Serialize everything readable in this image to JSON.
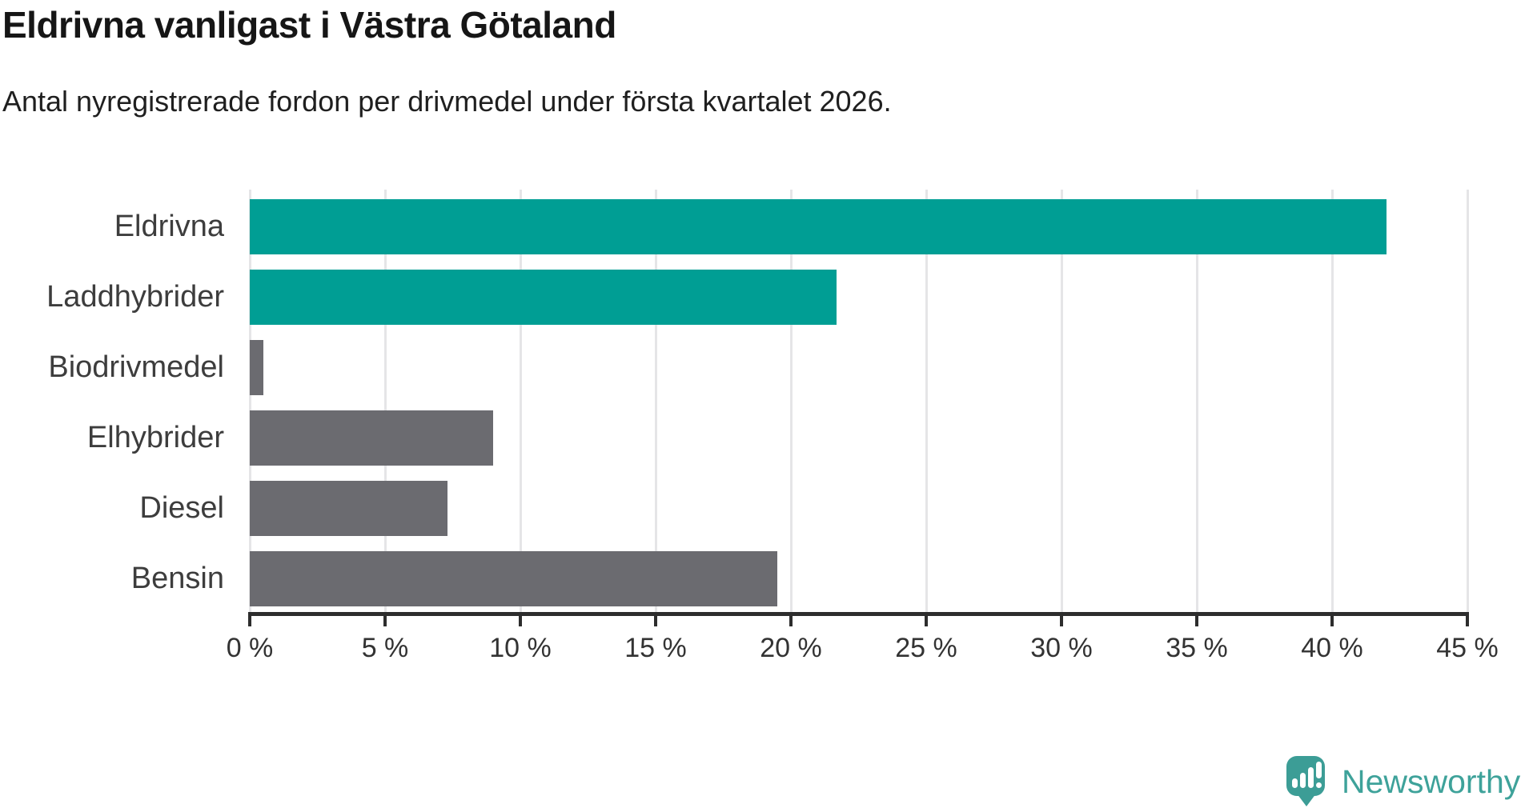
{
  "title": "Eldrivna vanligast i Västra Götaland",
  "subtitle": "Antal nyregistrerade fordon per drivmedel under första kvartalet 2026.",
  "chart_data": {
    "type": "bar",
    "orientation": "horizontal",
    "title": "Eldrivna vanligast i Västra Götaland",
    "subtitle": "Antal nyregistrerade fordon per drivmedel under första kvartalet 2026.",
    "categories": [
      "Eldrivna",
      "Laddhybrider",
      "Biodrivmedel",
      "Elhybrider",
      "Diesel",
      "Bensin"
    ],
    "values": [
      42.0,
      21.7,
      0.5,
      9.0,
      7.3,
      19.5
    ],
    "unit": "%",
    "bar_colors": [
      "#009e94",
      "#009e94",
      "#6b6b70",
      "#6b6b70",
      "#6b6b70",
      "#6b6b70"
    ],
    "xlim": [
      0,
      45
    ],
    "x_ticks": [
      0,
      5,
      10,
      15,
      20,
      25,
      30,
      35,
      40,
      45
    ],
    "x_tick_labels": [
      "0 %",
      "5 %",
      "10 %",
      "15 %",
      "20 %",
      "25 %",
      "30 %",
      "35 %",
      "40 %",
      "45 %"
    ],
    "grid": true,
    "legend": false,
    "ylabel": "",
    "xlabel": ""
  },
  "colors": {
    "highlight_bar": "#009e94",
    "default_bar": "#6b6b70",
    "axis": "#2d2d2d",
    "gridline": "#e5e5e7",
    "tick_text": "#333333",
    "logo_teal": "#3c9d96"
  },
  "branding": {
    "logo_text": "Newsworthy",
    "logo_icon": "newsworthy-chart-bubble-icon"
  }
}
